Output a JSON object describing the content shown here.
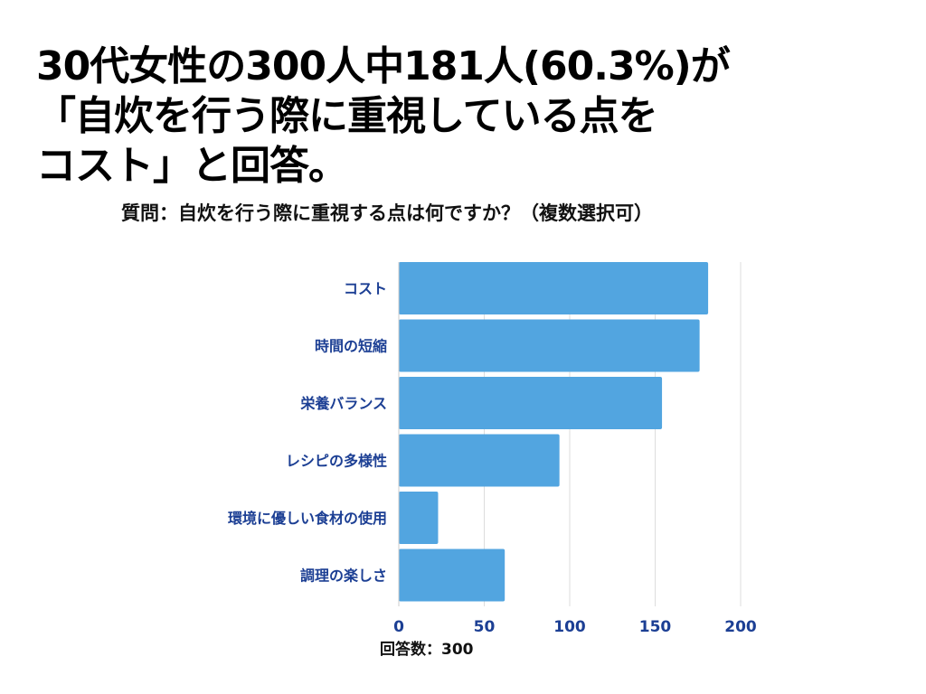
{
  "headline": {
    "line1": "30代女性の300人中181人(60.3%)が",
    "line2": "「自炊を行う際に重視している点を",
    "line3": "コスト」と回答。"
  },
  "question": "質問：自炊を行う際に重視する点は何ですか？（複数選択可）",
  "respondents": "回答数：300",
  "colors": {
    "bar": "#52a5e0",
    "label": "#1c3f94",
    "grid": "#dddddd"
  },
  "chart_data": {
    "type": "bar",
    "orientation": "horizontal",
    "categories": [
      "コスト",
      "時間の短縮",
      "栄養バランス",
      "レシピの多様性",
      "環境に優しい食材の使用",
      "調理の楽しさ"
    ],
    "values": [
      181,
      176,
      154,
      94,
      23,
      62
    ],
    "xlim": [
      0,
      200
    ],
    "xticks": [
      0,
      50,
      100,
      150,
      200
    ],
    "grid": true
  }
}
